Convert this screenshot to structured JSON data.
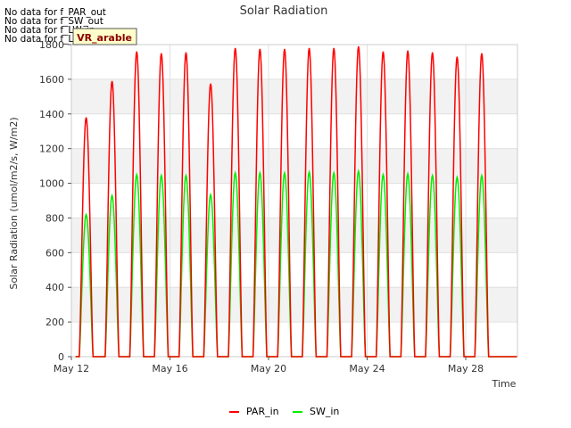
{
  "no_data_messages": [
    "No data for f_PAR_out",
    "No data for f_SW_out",
    "No data for f_LW_in",
    "No data for f_LW_out"
  ],
  "badge_label": "VR_arable",
  "chart_data": {
    "type": "line",
    "title": "Solar Radiation",
    "xlabel": "Time",
    "ylabel": "Solar Radiation (umol/m2/s, W/m2)",
    "ylim": [
      0,
      1800
    ],
    "yticks": [
      0,
      200,
      400,
      600,
      800,
      1000,
      1200,
      1400,
      1600,
      1800
    ],
    "xlim_days": [
      12,
      30.1
    ],
    "xticks": [
      {
        "day": 12,
        "label": "May 12"
      },
      {
        "day": 16,
        "label": "May 16"
      },
      {
        "day": 20,
        "label": "May 20"
      },
      {
        "day": 24,
        "label": "May 24"
      },
      {
        "day": 28,
        "label": "May 28"
      }
    ],
    "grid": true,
    "legend_position": "bottom-center",
    "series": [
      {
        "name": "PAR_in",
        "color": "#ff0000",
        "daily_peak_days": [
          12.6,
          13.65,
          14.65,
          15.65,
          16.65,
          17.65,
          18.65,
          19.65,
          20.65,
          21.65,
          22.65,
          23.65,
          24.65,
          25.65,
          26.65,
          27.65,
          28.65,
          29.65
        ],
        "daily_peak_values": [
          1380,
          1590,
          1760,
          1750,
          1755,
          1575,
          1780,
          1775,
          1775,
          1780,
          1780,
          1790,
          1760,
          1765,
          1755,
          1730,
          1750,
          0
        ]
      },
      {
        "name": "SW_in",
        "color": "#00ee00",
        "daily_peak_days": [
          12.6,
          13.65,
          14.65,
          15.65,
          16.65,
          17.65,
          18.65,
          19.65,
          20.65,
          21.65,
          22.65,
          23.65,
          24.65,
          25.65,
          26.65,
          27.65,
          28.65,
          29.65
        ],
        "daily_peak_values": [
          820,
          930,
          1050,
          1045,
          1045,
          935,
          1060,
          1060,
          1060,
          1065,
          1060,
          1070,
          1050,
          1055,
          1045,
          1035,
          1045,
          0
        ]
      }
    ]
  }
}
